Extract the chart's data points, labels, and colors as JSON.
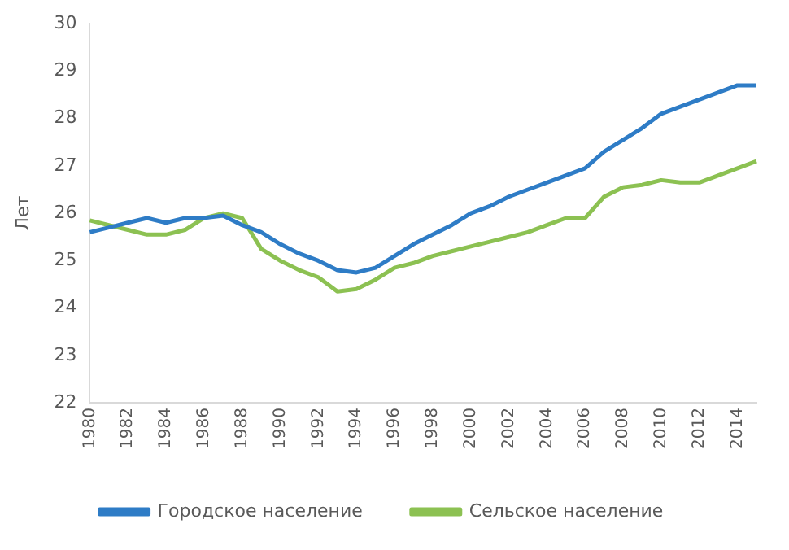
{
  "chart_data": {
    "type": "line",
    "ylabel": "Лет",
    "categories": [
      "1980",
      null,
      "1982",
      null,
      "1984",
      null,
      "1986",
      null,
      "1988",
      null,
      "1990",
      null,
      "1992",
      null,
      "1994",
      null,
      "1996",
      null,
      "1998",
      null,
      "2000",
      null,
      "2002",
      null,
      "2004",
      null,
      "2006",
      null,
      "2008",
      null,
      "2010",
      null,
      "2012",
      null,
      "2014",
      null
    ],
    "series": [
      {
        "name": "Городское население",
        "color": "#2e7cc6",
        "values": [
          25.6,
          25.7,
          25.8,
          25.9,
          25.8,
          25.9,
          25.9,
          25.95,
          25.75,
          25.6,
          25.35,
          25.15,
          25.0,
          24.8,
          24.75,
          24.85,
          25.1,
          25.35,
          25.55,
          25.75,
          26.0,
          26.15,
          26.35,
          26.5,
          26.65,
          26.8,
          26.95,
          27.3,
          27.55,
          27.8,
          28.1,
          28.25,
          28.4,
          28.55,
          28.7,
          28.7
        ]
      },
      {
        "name": "Сельское население",
        "color": "#8cc152",
        "values": [
          25.85,
          25.75,
          25.65,
          25.55,
          25.55,
          25.65,
          25.9,
          26.0,
          25.9,
          25.25,
          25.0,
          24.8,
          24.65,
          24.35,
          24.4,
          24.6,
          24.85,
          24.95,
          25.1,
          25.2,
          25.3,
          25.4,
          25.5,
          25.6,
          25.75,
          25.9,
          25.9,
          26.35,
          26.55,
          26.6,
          26.7,
          26.65,
          26.65,
          26.8,
          26.95,
          27.1
        ]
      }
    ],
    "ylim": [
      22,
      30
    ],
    "yticks": [
      22,
      23,
      24,
      25,
      26,
      27,
      28,
      29,
      30
    ],
    "grid": false,
    "legend": "bottom",
    "marker": "none",
    "line_style": "solid"
  }
}
